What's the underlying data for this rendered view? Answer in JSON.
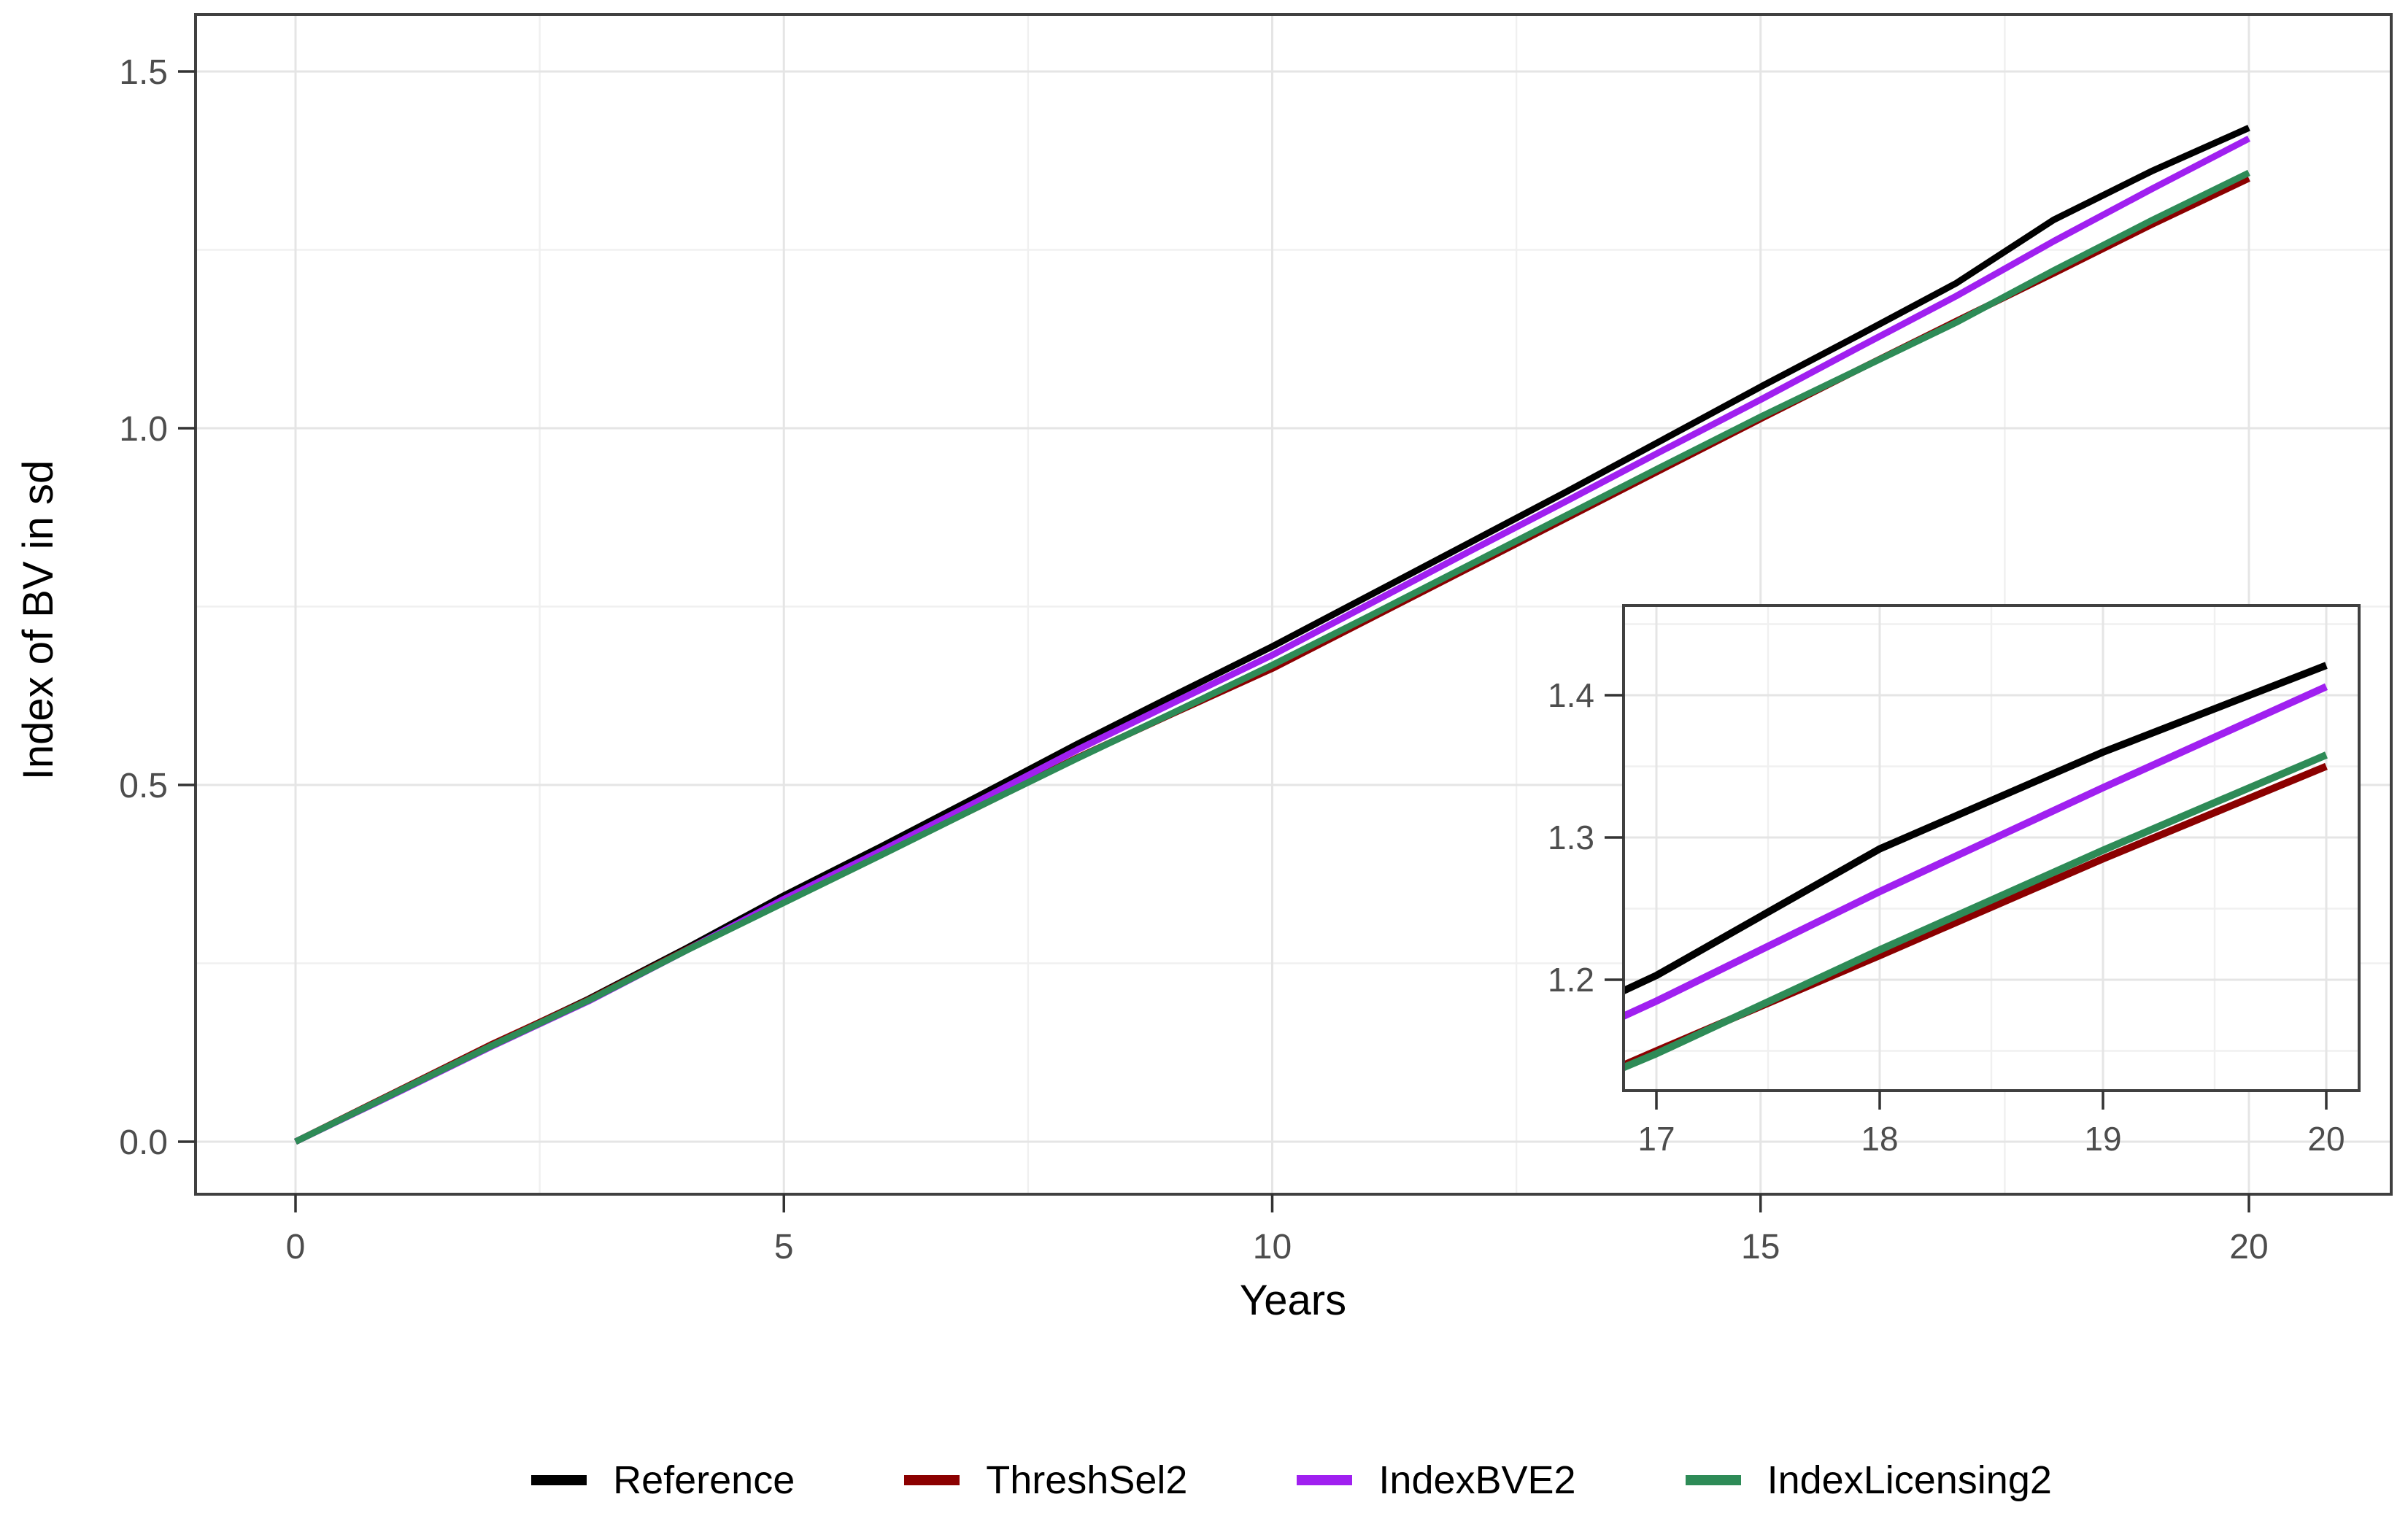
{
  "figure": {
    "background": "#ffffff"
  },
  "chart_data": {
    "type": "line",
    "title": "",
    "xlabel": "Years",
    "ylabel": "Index of BV in sd",
    "grid": true,
    "legend_position": "bottom",
    "xlim": [
      0,
      20
    ],
    "ylim": [
      0,
      1.5
    ],
    "x_ticks": [
      0,
      5,
      10,
      15,
      20
    ],
    "x_tick_labels": [
      "0",
      "5",
      "10",
      "15",
      "20"
    ],
    "x_minor": [
      2.5,
      7.5,
      12.5,
      17.5
    ],
    "y_ticks": [
      0,
      0.5,
      1.0,
      1.5
    ],
    "y_tick_labels": [
      "0.0",
      "0.5",
      "1.0",
      "1.5"
    ],
    "y_minor": [
      0.25,
      0.75,
      1.25
    ],
    "years": [
      0,
      1,
      2,
      3,
      4,
      5,
      6,
      7,
      8,
      9,
      10,
      11,
      12,
      13,
      14,
      15,
      16,
      17,
      18,
      19,
      20
    ],
    "series": [
      {
        "name": "Reference",
        "color": "#000000",
        "values": [
          0,
          0.067,
          0.135,
          0.2,
          0.271,
          0.345,
          0.414,
          0.485,
          0.557,
          0.626,
          0.694,
          0.766,
          0.838,
          0.91,
          0.984,
          1.058,
          1.13,
          1.203,
          1.292,
          1.36,
          1.421
        ]
      },
      {
        "name": "ThreshSel2",
        "color": "#8B0000",
        "values": [
          0,
          0.068,
          0.136,
          0.199,
          0.269,
          0.337,
          0.403,
          0.47,
          0.538,
          0.601,
          0.663,
          0.733,
          0.803,
          0.873,
          0.943,
          1.013,
          1.082,
          1.15,
          1.217,
          1.285,
          1.35
        ]
      },
      {
        "name": "IndexBVE2",
        "color": "#A020F0",
        "values": [
          0,
          0.066,
          0.133,
          0.197,
          0.268,
          0.34,
          0.408,
          0.478,
          0.549,
          0.616,
          0.682,
          0.754,
          0.826,
          0.897,
          0.969,
          1.04,
          1.113,
          1.185,
          1.262,
          1.335,
          1.406
        ]
      },
      {
        "name": "IndexLicensing2",
        "color": "#2E8B57",
        "values": [
          0,
          0.067,
          0.134,
          0.198,
          0.268,
          0.335,
          0.402,
          0.47,
          0.537,
          0.602,
          0.668,
          0.737,
          0.807,
          0.877,
          0.947,
          1.016,
          1.082,
          1.148,
          1.221,
          1.291,
          1.358
        ]
      }
    ],
    "inset": {
      "xlim": [
        17,
        20
      ],
      "ylim": [
        1.2,
        1.4
      ],
      "x_ticks": [
        17,
        18,
        19,
        20
      ],
      "x_tick_labels": [
        "17",
        "18",
        "19",
        "20"
      ],
      "x_minor": [
        17.5,
        18.5,
        19.5
      ],
      "y_ticks": [
        1.2,
        1.3,
        1.4
      ],
      "y_tick_labels": [
        "1.2",
        "1.3",
        "1.4"
      ],
      "y_minor": [
        1.15,
        1.25,
        1.35,
        1.45
      ]
    }
  }
}
